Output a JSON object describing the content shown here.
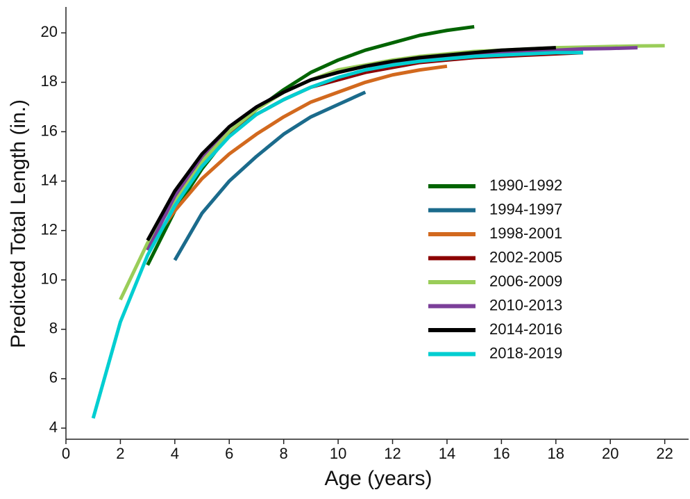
{
  "chart_data": {
    "type": "line",
    "x_label": "Age (years)",
    "y_label": "Predicted Total Length (in.)",
    "xlim": [
      0,
      22.8
    ],
    "ylim": [
      3.55,
      21.05
    ],
    "xticks": [
      0,
      2,
      4,
      6,
      8,
      10,
      12,
      14,
      16,
      18,
      20,
      22
    ],
    "yticks": [
      4,
      6,
      8,
      10,
      12,
      14,
      16,
      18,
      20
    ],
    "legend": "right",
    "series": [
      {
        "name": "1990-1992",
        "color": "#006400",
        "x": [
          3,
          4,
          5,
          6,
          7,
          8,
          9,
          10,
          11,
          12,
          13,
          14,
          15
        ],
        "values": [
          10.6,
          12.8,
          14.5,
          15.9,
          16.9,
          17.7,
          18.4,
          18.9,
          19.3,
          19.6,
          19.9,
          20.1,
          20.25
        ]
      },
      {
        "name": "1994-1997",
        "color": "#1b6b8c",
        "x": [
          4,
          5,
          6,
          7,
          8,
          9,
          10,
          11
        ],
        "values": [
          10.8,
          12.7,
          14.0,
          15.0,
          15.9,
          16.6,
          17.1,
          17.6
        ]
      },
      {
        "name": "1998-2001",
        "color": "#d2691e",
        "x": [
          3,
          4,
          5,
          6,
          7,
          8,
          9,
          10,
          11,
          12,
          13,
          14
        ],
        "values": [
          11.3,
          12.8,
          14.1,
          15.1,
          15.9,
          16.6,
          17.2,
          17.6,
          18.0,
          18.3,
          18.5,
          18.65
        ]
      },
      {
        "name": "2002-2005",
        "color": "#8b0000",
        "x": [
          3,
          4,
          5,
          6,
          7,
          8,
          9,
          10,
          11,
          12,
          13,
          14,
          15,
          16,
          17,
          18,
          19
        ],
        "values": [
          11.4,
          13.3,
          14.8,
          15.9,
          16.7,
          17.3,
          17.8,
          18.1,
          18.4,
          18.6,
          18.8,
          18.9,
          19.0,
          19.05,
          19.1,
          19.15,
          19.2
        ]
      },
      {
        "name": "2006-2009",
        "color": "#9acd59",
        "x": [
          2,
          3,
          4,
          5,
          6,
          7,
          8,
          9,
          10,
          11,
          12,
          13,
          14,
          15,
          16,
          17,
          18,
          19,
          20,
          21,
          22
        ],
        "values": [
          9.2,
          11.5,
          13.2,
          14.8,
          16.0,
          16.9,
          17.6,
          18.1,
          18.5,
          18.7,
          18.9,
          19.05,
          19.15,
          19.25,
          19.3,
          19.35,
          19.4,
          19.42,
          19.45,
          19.47,
          19.48
        ]
      },
      {
        "name": "2010-2013",
        "color": "#7b3f99",
        "x": [
          3,
          4,
          5,
          6,
          7,
          8,
          9,
          10,
          11,
          12,
          13,
          14,
          15,
          16,
          17,
          18,
          19,
          20,
          21
        ],
        "values": [
          11.2,
          13.4,
          15.0,
          16.2,
          17.0,
          17.6,
          18.1,
          18.4,
          18.65,
          18.8,
          18.95,
          19.05,
          19.15,
          19.2,
          19.25,
          19.3,
          19.35,
          19.37,
          19.4
        ]
      },
      {
        "name": "2014-2016",
        "color": "#000000",
        "x": [
          3,
          4,
          5,
          6,
          7,
          8,
          9,
          10,
          11,
          12,
          13,
          14,
          15,
          16,
          17,
          18
        ],
        "values": [
          11.6,
          13.6,
          15.1,
          16.2,
          17.0,
          17.6,
          18.1,
          18.4,
          18.65,
          18.85,
          19.0,
          19.1,
          19.2,
          19.3,
          19.35,
          19.4
        ]
      },
      {
        "name": "2018-2019",
        "color": "#00ced1",
        "x": [
          1,
          2,
          3,
          4,
          5,
          6,
          7,
          8,
          9,
          10,
          11,
          12,
          13,
          14,
          15,
          16,
          17,
          18,
          19
        ],
        "values": [
          4.4,
          8.3,
          11.0,
          13.0,
          14.6,
          15.8,
          16.7,
          17.3,
          17.8,
          18.2,
          18.5,
          18.7,
          18.85,
          18.95,
          19.05,
          19.1,
          19.15,
          19.2,
          19.2
        ]
      }
    ]
  }
}
